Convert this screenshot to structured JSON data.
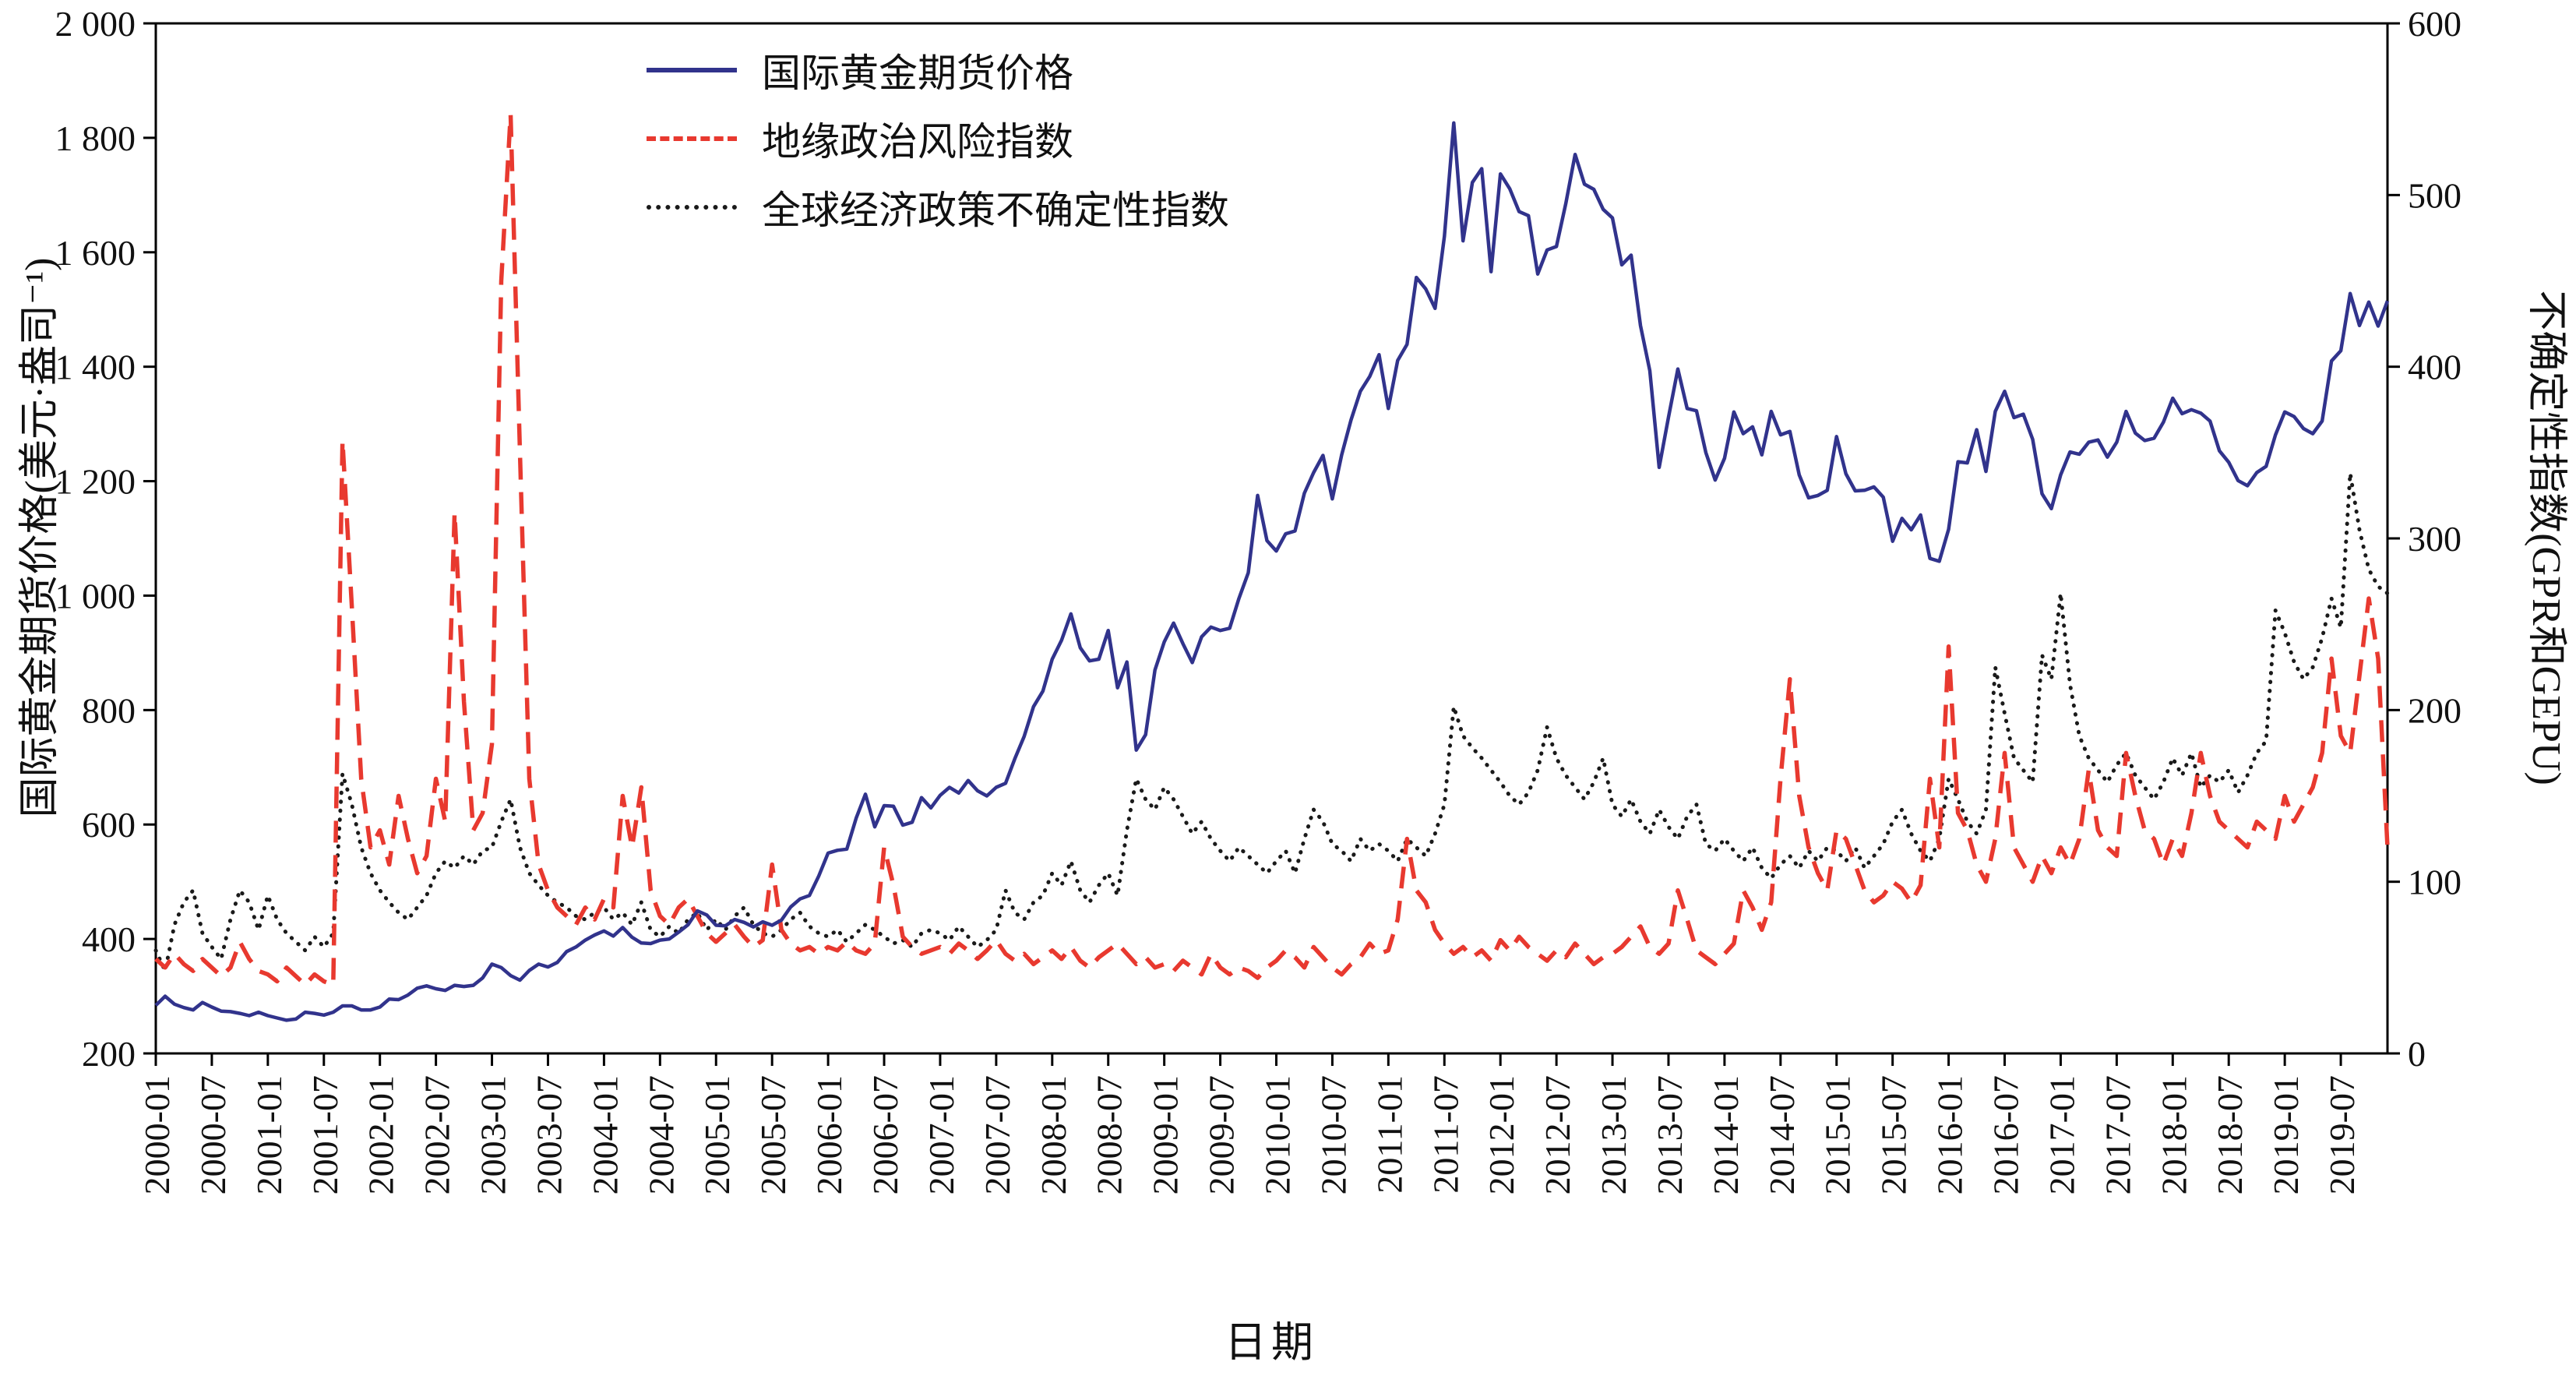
{
  "chart_data": {
    "type": "line",
    "title": "",
    "x_label": "日期",
    "legend_position": "top-left-inside",
    "grid": false,
    "n_points": 240,
    "x_tick_every": 6,
    "x_tick_labels": [
      "2000-01",
      "2000-07",
      "2001-01",
      "2001-07",
      "2002-01",
      "2002-07",
      "2003-01",
      "2003-07",
      "2004-01",
      "2004-07",
      "2005-01",
      "2005-07",
      "2006-01",
      "2006-07",
      "2007-01",
      "2007-07",
      "2008-01",
      "2008-07",
      "2009-01",
      "2009-07",
      "2010-01",
      "2010-07",
      "2011-01",
      "2011-07",
      "2012-01",
      "2012-07",
      "2013-01",
      "2013-07",
      "2014-01",
      "2014-07",
      "2015-01",
      "2015-07",
      "2016-01",
      "2016-07",
      "2017-01",
      "2017-07",
      "2018-01",
      "2018-07",
      "2019-01",
      "2019-07"
    ],
    "left_axis": {
      "label": "国际黄金期货价格(美元·盎司⁻¹)",
      "min": 200,
      "max": 2000,
      "tick_step": 200,
      "tick_labels_bottom_to_top": [
        "200",
        "400",
        "600",
        "800",
        "1 000",
        "1 200",
        "1 400",
        "1 600",
        "1 800",
        "2 000"
      ]
    },
    "right_axis": {
      "label": "不确定性指数(GPR和GEPU)",
      "min": 0,
      "max": 600,
      "tick_step": 100,
      "tick_labels_bottom_to_top": [
        "0",
        "100",
        "200",
        "300",
        "400",
        "500",
        "600"
      ]
    },
    "series": [
      {
        "name": "国际黄金期货价格",
        "axis": "left",
        "color": "#31338c",
        "style": "solid",
        "values": [
          284,
          300,
          286,
          280,
          276,
          289,
          281,
          274,
          273,
          270,
          266,
          272,
          266,
          262,
          258,
          260,
          272,
          270,
          267,
          272,
          283,
          283,
          276,
          276,
          281,
          295,
          294,
          302,
          314,
          318,
          313,
          310,
          319,
          317,
          319,
          332,
          356,
          350,
          336,
          328,
          345,
          356,
          351,
          359,
          378,
          386,
          398,
          407,
          414,
          405,
          420,
          403,
          393,
          392,
          398,
          400,
          412,
          425,
          449,
          442,
          424,
          423,
          434,
          429,
          421,
          430,
          424,
          433,
          456,
          470,
          476,
          510,
          550,
          555,
          557,
          611,
          653,
          596,
          633,
          632,
          599,
          604,
          647,
          629,
          651,
          665,
          655,
          677,
          659,
          650,
          665,
          672,
          715,
          754,
          806,
          833,
          889,
          922,
          968,
          909,
          886,
          889,
          939,
          839,
          884,
          730,
          757,
          870,
          919,
          952,
          916,
          883,
          928,
          945,
          939,
          943,
          995,
          1040,
          1175,
          1096,
          1078,
          1108,
          1113,
          1179,
          1215,
          1245,
          1169,
          1246,
          1307,
          1357,
          1383,
          1421,
          1327,
          1411,
          1439,
          1556,
          1536,
          1502,
          1628,
          1826,
          1620,
          1722,
          1746,
          1566,
          1737,
          1711,
          1671,
          1664,
          1562,
          1604,
          1610,
          1685,
          1771,
          1719,
          1710,
          1675,
          1660,
          1578,
          1595,
          1472,
          1393,
          1224,
          1312,
          1396,
          1327,
          1323,
          1250,
          1202,
          1240,
          1321,
          1283,
          1295,
          1246,
          1322,
          1281,
          1287,
          1211,
          1171,
          1175,
          1184,
          1278,
          1213,
          1183,
          1184,
          1190,
          1172,
          1095,
          1135,
          1115,
          1141,
          1065,
          1060,
          1116,
          1234,
          1232,
          1290,
          1217,
          1322,
          1357,
          1311,
          1317,
          1273,
          1178,
          1152,
          1211,
          1251,
          1247,
          1268,
          1272,
          1242,
          1268,
          1322,
          1284,
          1271,
          1275,
          1303,
          1345,
          1318,
          1325,
          1319,
          1305,
          1253,
          1233,
          1201,
          1192,
          1215,
          1226,
          1281,
          1321,
          1313,
          1292,
          1283,
          1305,
          1410,
          1428,
          1528,
          1472,
          1513,
          1471,
          1515
        ]
      },
      {
        "name": "地缘政治风险指数",
        "axis": "right",
        "color": "#e8392f",
        "style": "dashed",
        "values": [
          55,
          50,
          58,
          52,
          48,
          55,
          50,
          45,
          50,
          65,
          55,
          48,
          46,
          42,
          50,
          45,
          40,
          46,
          42,
          40,
          357,
          260,
          160,
          120,
          130,
          110,
          150,
          125,
          105,
          115,
          160,
          135,
          315,
          205,
          130,
          140,
          180,
          450,
          547,
          350,
          160,
          110,
          95,
          85,
          80,
          75,
          85,
          78,
          90,
          85,
          150,
          120,
          155,
          95,
          80,
          75,
          85,
          90,
          80,
          70,
          65,
          70,
          75,
          68,
          62,
          66,
          110,
          72,
          64,
          60,
          62,
          58,
          62,
          60,
          65,
          60,
          58,
          64,
          120,
          98,
          68,
          62,
          58,
          60,
          62,
          58,
          64,
          60,
          55,
          60,
          66,
          58,
          54,
          58,
          52,
          56,
          60,
          55,
          62,
          54,
          50,
          56,
          60,
          64,
          58,
          52,
          56,
          50,
          52,
          48,
          54,
          50,
          46,
          58,
          50,
          46,
          50,
          48,
          44,
          50,
          54,
          60,
          56,
          50,
          62,
          56,
          50,
          46,
          52,
          56,
          64,
          58,
          60,
          78,
          125,
          95,
          88,
          72,
          64,
          58,
          62,
          56,
          60,
          54,
          66,
          60,
          68,
          62,
          58,
          54,
          60,
          56,
          64,
          58,
          52,
          56,
          58,
          62,
          68,
          74,
          62,
          58,
          64,
          95,
          78,
          60,
          56,
          52,
          58,
          64,
          95,
          85,
          72,
          88,
          160,
          218,
          150,
          120,
          105,
          95,
          130,
          125,
          110,
          95,
          88,
          92,
          100,
          96,
          88,
          98,
          160,
          120,
          237,
          140,
          130,
          110,
          100,
          125,
          175,
          120,
          110,
          100,
          115,
          105,
          120,
          110,
          125,
          165,
          130,
          120,
          115,
          175,
          150,
          130,
          125,
          110,
          125,
          115,
          140,
          175,
          150,
          135,
          130,
          125,
          120,
          135,
          130,
          125,
          150,
          135,
          145,
          155,
          175,
          230,
          185,
          175,
          220,
          265,
          230,
          120
        ]
      },
      {
        "name": "全球经济政策不确定性指数",
        "axis": "right",
        "color": "#1a1a1a",
        "style": "dotted",
        "values": [
          60,
          48,
          75,
          88,
          95,
          70,
          62,
          55,
          78,
          95,
          88,
          72,
          92,
          78,
          70,
          65,
          60,
          68,
          62,
          70,
          163,
          145,
          120,
          105,
          95,
          88,
          82,
          78,
          85,
          92,
          105,
          112,
          108,
          115,
          110,
          118,
          120,
          135,
          148,
          120,
          105,
          98,
          92,
          88,
          85,
          80,
          78,
          82,
          85,
          78,
          82,
          75,
          88,
          72,
          68,
          74,
          70,
          78,
          82,
          72,
          78,
          72,
          80,
          85,
          75,
          70,
          68,
          72,
          78,
          82,
          74,
          70,
          68,
          72,
          65,
          70,
          75,
          72,
          68,
          64,
          66,
          62,
          70,
          72,
          70,
          66,
          74,
          68,
          62,
          66,
          72,
          95,
          82,
          78,
          88,
          92,
          105,
          98,
          112,
          95,
          88,
          98,
          105,
          92,
          130,
          160,
          148,
          142,
          155,
          148,
          138,
          128,
          135,
          125,
          118,
          112,
          120,
          115,
          110,
          105,
          112,
          118,
          105,
          125,
          142,
          135,
          122,
          118,
          112,
          125,
          118,
          122,
          118,
          112,
          125,
          120,
          115,
          128,
          145,
          202,
          185,
          178,
          172,
          165,
          158,
          150,
          145,
          152,
          165,
          190,
          172,
          162,
          155,
          148,
          158,
          172,
          145,
          138,
          148,
          135,
          128,
          142,
          132,
          125,
          138,
          145,
          122,
          118,
          125,
          118,
          112,
          120,
          108,
          102,
          110,
          115,
          108,
          118,
          112,
          120,
          118,
          112,
          120,
          108,
          115,
          122,
          135,
          142,
          128,
          118,
          112,
          125,
          160,
          148,
          135,
          128,
          142,
          225,
          198,
          172,
          165,
          158,
          232,
          218,
          268,
          215,
          185,
          172,
          165,
          158,
          168,
          175,
          162,
          155,
          148,
          158,
          172,
          162,
          175,
          155,
          162,
          158,
          165,
          152,
          162,
          175,
          182,
          258,
          245,
          228,
          218,
          225,
          242,
          265,
          248,
          338,
          305,
          282,
          272,
          268
        ]
      }
    ]
  }
}
